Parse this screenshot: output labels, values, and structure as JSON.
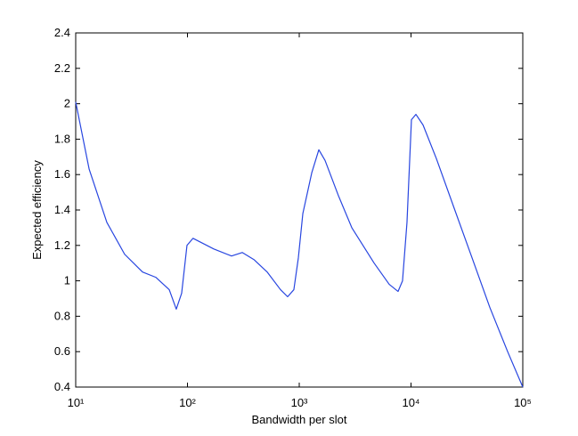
{
  "chart_data": {
    "type": "line",
    "xlabel": "Bandwidth per slot",
    "ylabel": "Expected efficiency",
    "xscale": "log",
    "color": "#2846e0",
    "xlim": [
      10,
      100000
    ],
    "xticks": [
      {
        "value": 10,
        "label": "10¹"
      },
      {
        "value": 100,
        "label": "10²"
      },
      {
        "value": 1000,
        "label": "10³"
      },
      {
        "value": 10000,
        "label": "10⁴"
      },
      {
        "value": 100000,
        "label": "10⁵"
      }
    ],
    "ylim": [
      0.4,
      2.4
    ],
    "yticks": [
      0.4,
      0.6,
      0.8,
      1,
      1.2,
      1.4,
      1.6,
      1.8,
      2,
      2.2,
      2.4
    ],
    "x": [
      10,
      13.2,
      19,
      27.4,
      39.6,
      52,
      68.7,
      79.4,
      88.7,
      99,
      112,
      172,
      248,
      309,
      393,
      516,
      680,
      787,
      895,
      982,
      1077,
      1294,
      1497,
      1702,
      2244,
      2954,
      4677,
      6383,
      7660,
      8395,
      9204,
      10090,
      11070,
      12820,
      16870,
      24330,
      35150,
      50700,
      73200,
      100000
    ],
    "values": [
      2.01,
      1.63,
      1.33,
      1.15,
      1.05,
      1.02,
      0.95,
      0.84,
      0.93,
      1.2,
      1.24,
      1.18,
      1.14,
      1.16,
      1.12,
      1.05,
      0.95,
      0.91,
      0.95,
      1.13,
      1.38,
      1.61,
      1.74,
      1.68,
      1.48,
      1.3,
      1.1,
      0.98,
      0.94,
      1.0,
      1.33,
      1.91,
      1.94,
      1.88,
      1.69,
      1.41,
      1.13,
      0.85,
      0.6,
      0.4
    ]
  }
}
